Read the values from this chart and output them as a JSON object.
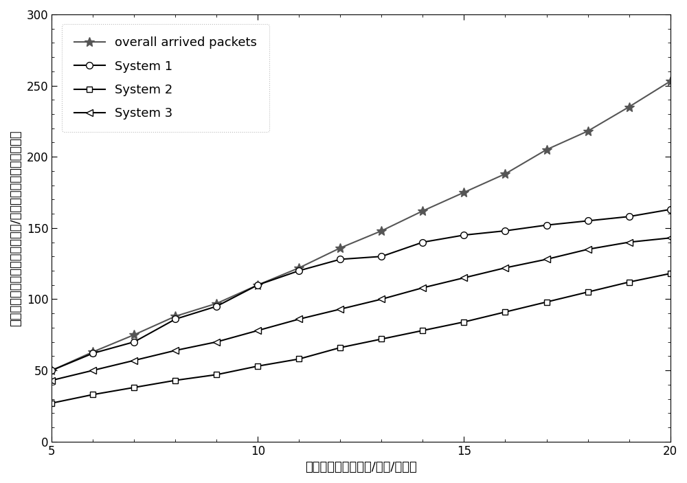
{
  "x": [
    5,
    6,
    7,
    8,
    9,
    10,
    11,
    12,
    13,
    14,
    15,
    16,
    17,
    18,
    19,
    20
  ],
  "overall": [
    50,
    63,
    75,
    88,
    97,
    110,
    122,
    136,
    148,
    162,
    175,
    188,
    205,
    218,
    235,
    253
  ],
  "system1": [
    50,
    62,
    70,
    86,
    95,
    110,
    120,
    128,
    130,
    140,
    145,
    148,
    152,
    155,
    158,
    163
  ],
  "system2": [
    27,
    33,
    38,
    43,
    47,
    53,
    58,
    66,
    72,
    78,
    84,
    91,
    98,
    105,
    112,
    118
  ],
  "system3": [
    43,
    50,
    57,
    64,
    70,
    78,
    86,
    93,
    100,
    108,
    115,
    122,
    128,
    135,
    140,
    143
  ],
  "xlabel": "分组到达速率（包数/时隙/用户）",
  "ylabel": "每时隙系统平均到达的分组数目/平均每时隙系统的总吞吐量",
  "xlim": [
    5,
    20
  ],
  "ylim": [
    0,
    300
  ],
  "xticks": [
    5,
    10,
    15,
    20
  ],
  "yticks": [
    0,
    50,
    100,
    150,
    200,
    250,
    300
  ],
  "legend_labels": [
    "overall arrived packets",
    "System 1",
    "System 2",
    "System 3"
  ],
  "overall_color": "#555555",
  "line_color": "#000000",
  "background_color": "#ffffff",
  "label_fontsize": 13,
  "tick_fontsize": 12,
  "legend_fontsize": 13
}
